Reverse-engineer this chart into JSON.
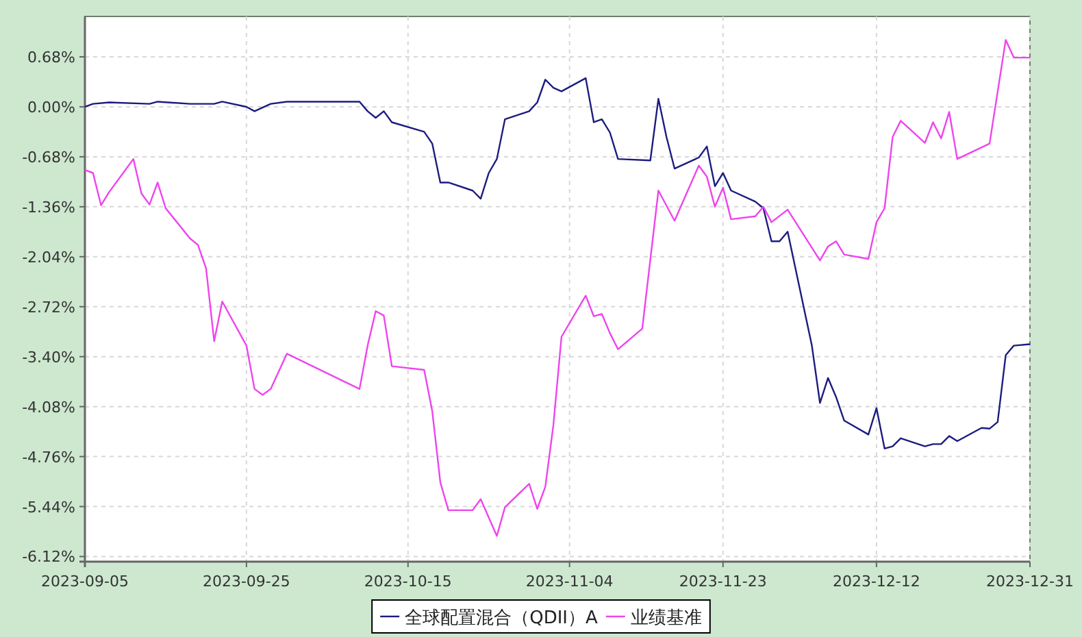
{
  "chart_data": {
    "type": "line",
    "x": [
      "2023-09-05",
      "2023-09-06",
      "2023-09-08",
      "2023-09-13",
      "2023-09-14",
      "2023-09-18",
      "2023-09-21",
      "2023-09-22",
      "2023-09-25",
      "2023-09-26",
      "2023-09-28",
      "2023-09-30",
      "2023-10-09",
      "2023-10-10",
      "2023-10-11",
      "2023-10-12",
      "2023-10-13",
      "2023-10-17",
      "2023-10-18",
      "2023-10-19",
      "2023-10-20",
      "2023-10-23",
      "2023-10-24",
      "2023-10-25",
      "2023-10-26",
      "2023-10-27",
      "2023-10-30",
      "2023-10-31",
      "2023-11-01",
      "2023-11-02",
      "2023-11-03",
      "2023-11-06",
      "2023-11-07",
      "2023-11-08",
      "2023-11-09",
      "2023-11-10",
      "2023-11-14",
      "2023-11-15",
      "2023-11-16",
      "2023-11-17",
      "2023-11-20",
      "2023-11-21",
      "2023-11-22",
      "2023-11-23",
      "2023-11-24",
      "2023-11-27",
      "2023-11-28",
      "2023-11-29",
      "2023-11-30",
      "2023-12-01",
      "2023-12-04",
      "2023-12-05",
      "2023-12-06",
      "2023-12-07",
      "2023-12-08",
      "2023-12-11",
      "2023-12-12",
      "2023-12-13",
      "2023-12-14",
      "2023-12-15",
      "2023-12-18",
      "2023-12-19",
      "2023-12-20",
      "2023-12-21",
      "2023-12-22",
      "2023-12-25",
      "2023-12-26",
      "2023-12-27",
      "2023-12-28",
      "2023-12-29",
      "2023-12-31"
    ],
    "series": [
      {
        "name": "全球配置混合（QDII）A",
        "color": "#1c1c80",
        "values": [
          0.0,
          0.04,
          0.06,
          0.04,
          0.07,
          0.04,
          0.04,
          0.07,
          0.0,
          -0.06,
          0.04,
          0.07,
          0.07,
          -0.06,
          -0.15,
          -0.06,
          -0.21,
          -0.34,
          -0.5,
          -1.03,
          -1.03,
          -1.14,
          -1.25,
          -0.9,
          -0.71,
          -0.17,
          -0.06,
          0.06,
          0.37,
          0.26,
          0.21,
          0.39,
          -0.21,
          -0.17,
          -0.35,
          -0.71,
          -0.73,
          0.11,
          -0.41,
          -0.84,
          -0.69,
          -0.54,
          -1.08,
          -0.9,
          -1.14,
          -1.29,
          -1.38,
          -1.83,
          -1.83,
          -1.7,
          -3.25,
          -4.03,
          -3.69,
          -3.95,
          -4.27,
          -4.46,
          -4.1,
          -4.65,
          -4.62,
          -4.51,
          -4.62,
          -4.59,
          -4.59,
          -4.48,
          -4.55,
          -4.37,
          -4.38,
          -4.29,
          -3.38,
          -3.25,
          -3.23
        ]
      },
      {
        "name": "业绩基准",
        "color": "#ee44ee",
        "x": [
          "2023-09-05",
          "2023-09-06",
          "2023-09-07",
          "2023-09-08",
          "2023-09-11",
          "2023-09-12",
          "2023-09-13",
          "2023-09-14",
          "2023-09-15",
          "2023-09-18",
          "2023-09-19",
          "2023-09-20",
          "2023-09-21",
          "2023-09-22",
          "2023-09-25",
          "2023-09-26",
          "2023-09-27",
          "2023-09-28",
          "2023-09-30",
          "2023-10-09",
          "2023-10-10",
          "2023-10-11",
          "2023-10-12",
          "2023-10-13",
          "2023-10-17",
          "2023-10-18",
          "2023-10-19",
          "2023-10-20",
          "2023-10-23",
          "2023-10-24",
          "2023-10-26",
          "2023-10-27",
          "2023-10-30",
          "2023-10-31",
          "2023-11-01",
          "2023-11-02",
          "2023-11-03",
          "2023-11-06",
          "2023-11-07",
          "2023-11-08",
          "2023-11-09",
          "2023-11-10",
          "2023-11-13",
          "2023-11-15",
          "2023-11-17",
          "2023-11-20",
          "2023-11-21",
          "2023-11-22",
          "2023-11-23",
          "2023-11-24",
          "2023-11-27",
          "2023-11-28",
          "2023-11-29",
          "2023-12-01",
          "2023-12-05",
          "2023-12-06",
          "2023-12-07",
          "2023-12-08",
          "2023-12-11",
          "2023-12-12",
          "2023-12-13",
          "2023-12-14",
          "2023-12-15",
          "2023-12-18",
          "2023-12-19",
          "2023-12-20",
          "2023-12-21",
          "2023-12-22",
          "2023-12-26",
          "2023-12-28",
          "2023-12-29",
          "2023-12-31"
        ],
        "values": [
          -0.86,
          -0.9,
          -1.34,
          -1.16,
          -0.71,
          -1.18,
          -1.33,
          -1.03,
          -1.38,
          -1.79,
          -1.88,
          -2.2,
          -3.19,
          -2.65,
          -3.25,
          -3.84,
          -3.92,
          -3.84,
          -3.36,
          -3.84,
          -3.25,
          -2.78,
          -2.84,
          -3.53,
          -3.58,
          -4.14,
          -5.11,
          -5.49,
          -5.49,
          -5.34,
          -5.84,
          -5.45,
          -5.13,
          -5.47,
          -5.17,
          -4.33,
          -3.13,
          -2.57,
          -2.85,
          -2.82,
          -3.08,
          -3.3,
          -3.02,
          -1.14,
          -1.55,
          -0.8,
          -0.95,
          -1.36,
          -1.1,
          -1.53,
          -1.49,
          -1.36,
          -1.57,
          -1.4,
          -2.09,
          -1.9,
          -1.83,
          -2.01,
          -2.07,
          -1.57,
          -1.38,
          -0.41,
          -0.19,
          -0.49,
          -0.21,
          -0.43,
          -0.07,
          -0.71,
          -0.5,
          0.91,
          0.67,
          0.67
        ]
      }
    ],
    "xlim": [
      "2023-09-05",
      "2023-12-31"
    ],
    "xticks": [
      "2023-09-05",
      "2023-09-25",
      "2023-10-15",
      "2023-11-04",
      "2023-11-23",
      "2023-12-12",
      "2023-12-31"
    ],
    "ylim": [
      -6.19,
      1.23
    ],
    "yticks": [
      {
        "value": 0.68,
        "label": "0.68%"
      },
      {
        "value": 0,
        "label": "0.00%"
      },
      {
        "value": -0.68,
        "label": "-0.68%"
      },
      {
        "value": -1.36,
        "label": "-1.36%"
      },
      {
        "value": -2.04,
        "label": "-2.04%"
      },
      {
        "value": -2.72,
        "label": "-2.72%"
      },
      {
        "value": -3.4,
        "label": "-3.40%"
      },
      {
        "value": -4.08,
        "label": "-4.08%"
      },
      {
        "value": -4.76,
        "label": "-4.76%"
      },
      {
        "value": -5.44,
        "label": "-5.44%"
      },
      {
        "value": -6.12,
        "label": "-6.12%"
      }
    ],
    "grid": true,
    "legend": "bottom",
    "line_style": "solid"
  }
}
